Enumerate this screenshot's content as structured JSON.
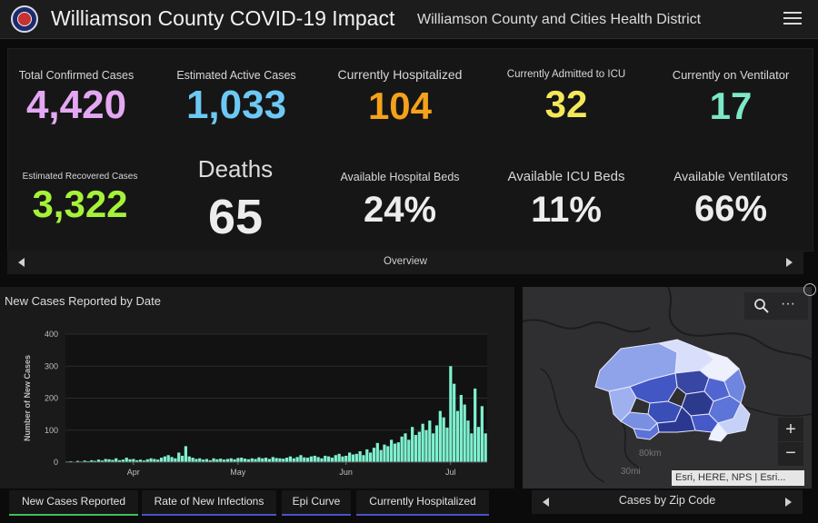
{
  "header": {
    "title": "Williamson County COVID-19 Impact",
    "subtitle": "Williamson County and Cities Health District"
  },
  "stats": [
    {
      "label": "Total Confirmed Cases",
      "value": "4,420",
      "color": "#e4a8f2"
    },
    {
      "label": "Estimated Active Cases",
      "value": "1,033",
      "color": "#6cc9f3"
    },
    {
      "label": "Currently Hospitalized",
      "value": "104",
      "color": "#f4a21a"
    },
    {
      "label": "Currently Admitted to ICU",
      "value": "32",
      "color": "#f4e85a"
    },
    {
      "label": "Currently on Ventilator",
      "value": "17",
      "color": "#7be8c8"
    },
    {
      "label": "Estimated Recovered Cases",
      "value": "3,322",
      "color": "#a6f23a"
    },
    {
      "label": "Deaths",
      "value": "65",
      "color": "#ededed"
    },
    {
      "label": "Available Hospital Beds",
      "value": "24%",
      "color": "#ededed"
    },
    {
      "label": "Available ICU Beds",
      "value": "11%",
      "color": "#ededed"
    },
    {
      "label": "Available Ventilators",
      "value": "66%",
      "color": "#ededed"
    }
  ],
  "overview": {
    "label": "Overview"
  },
  "chart_panel": {
    "title": "New Cases Reported by Date"
  },
  "chart_data": {
    "type": "bar",
    "title": "New Cases Reported by Date",
    "xlabel": "",
    "ylabel": "Number of New Cases",
    "ylim": [
      0,
      400
    ],
    "yticks": [
      "0",
      "100",
      "200",
      "300",
      "400"
    ],
    "xticks": [
      "Apr",
      "May",
      "Jun",
      "Jul"
    ],
    "bar_color": "#7ff0cf",
    "values": [
      2,
      3,
      1,
      4,
      2,
      5,
      3,
      6,
      4,
      8,
      5,
      10,
      9,
      7,
      12,
      6,
      8,
      14,
      9,
      10,
      6,
      8,
      5,
      9,
      12,
      10,
      8,
      14,
      18,
      22,
      16,
      12,
      30,
      20,
      50,
      18,
      14,
      10,
      12,
      8,
      10,
      6,
      12,
      9,
      11,
      8,
      10,
      12,
      9,
      13,
      14,
      11,
      9,
      12,
      10,
      15,
      12,
      14,
      10,
      16,
      13,
      12,
      11,
      14,
      18,
      12,
      16,
      22,
      15,
      14,
      18,
      20,
      16,
      12,
      20,
      18,
      14,
      22,
      26,
      18,
      20,
      30,
      24,
      26,
      34,
      22,
      40,
      30,
      45,
      60,
      38,
      55,
      50,
      70,
      58,
      62,
      80,
      90,
      70,
      110,
      85,
      95,
      120,
      100,
      130,
      90,
      115,
      160,
      140,
      108,
      300,
      245,
      160,
      210,
      180,
      130,
      90,
      230,
      110,
      175,
      90
    ]
  },
  "tabs": [
    {
      "label": "New Cases Reported",
      "active": true,
      "accent": "#3fbf5a"
    },
    {
      "label": "Rate of New Infections",
      "active": false,
      "accent": "#4a53c9"
    },
    {
      "label": "Epi Curve",
      "active": false,
      "accent": "#4a53c9"
    },
    {
      "label": "Currently Hospitalized",
      "active": false,
      "accent": "#4a53c9"
    }
  ],
  "map": {
    "attribution": "Esri, HERE, NPS | Esri...",
    "scale_km": "80km",
    "scale_mi": "30mi",
    "zoom_in": "+",
    "zoom_out": "−",
    "more": "···",
    "search_icon": "search-icon"
  },
  "zip_bar": {
    "label": "Cases by Zip Code"
  }
}
